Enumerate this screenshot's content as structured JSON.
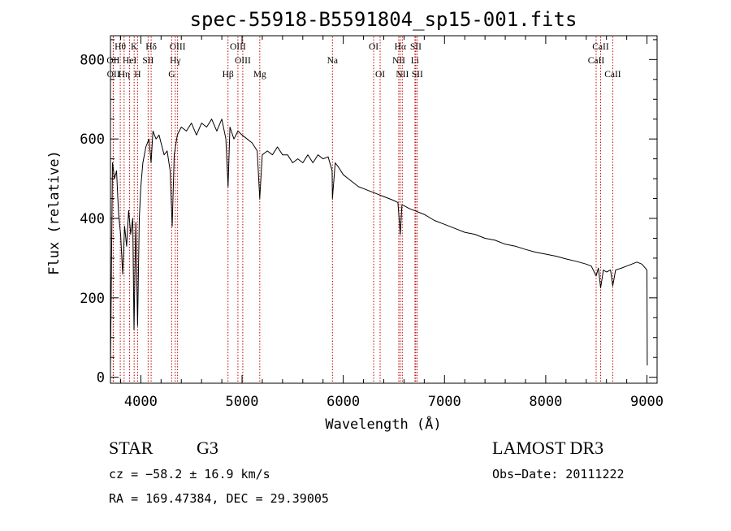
{
  "chart_data": {
    "type": "line",
    "title": "spec-55918-B5591804_sp15-001.fits",
    "xlabel": "Wavelength (Å)",
    "ylabel": "Flux (relative)",
    "xlim": [
      3700,
      9100
    ],
    "ylim": [
      -15,
      860
    ],
    "xticks": [
      4000,
      5000,
      6000,
      7000,
      8000,
      9000
    ],
    "yticks": [
      0,
      200,
      400,
      600,
      800
    ],
    "series": [
      {
        "name": "spectrum",
        "color": "#000000",
        "points": [
          [
            3700,
            20
          ],
          [
            3720,
            540
          ],
          [
            3740,
            500
          ],
          [
            3760,
            520
          ],
          [
            3780,
            410
          ],
          [
            3800,
            360
          ],
          [
            3820,
            260
          ],
          [
            3840,
            380
          ],
          [
            3860,
            330
          ],
          [
            3880,
            420
          ],
          [
            3900,
            360
          ],
          [
            3920,
            400
          ],
          [
            3933,
            120
          ],
          [
            3950,
            390
          ],
          [
            3968,
            130
          ],
          [
            3985,
            400
          ],
          [
            4000,
            480
          ],
          [
            4020,
            540
          ],
          [
            4050,
            580
          ],
          [
            4080,
            600
          ],
          [
            4101,
            540
          ],
          [
            4120,
            620
          ],
          [
            4150,
            600
          ],
          [
            4180,
            610
          ],
          [
            4200,
            590
          ],
          [
            4230,
            560
          ],
          [
            4260,
            570
          ],
          [
            4290,
            520
          ],
          [
            4310,
            380
          ],
          [
            4330,
            560
          ],
          [
            4360,
            610
          ],
          [
            4400,
            630
          ],
          [
            4450,
            620
          ],
          [
            4500,
            640
          ],
          [
            4550,
            610
          ],
          [
            4600,
            640
          ],
          [
            4650,
            630
          ],
          [
            4700,
            650
          ],
          [
            4750,
            620
          ],
          [
            4800,
            650
          ],
          [
            4840,
            600
          ],
          [
            4862,
            480
          ],
          [
            4880,
            630
          ],
          [
            4920,
            600
          ],
          [
            4960,
            620
          ],
          [
            5000,
            610
          ],
          [
            5050,
            600
          ],
          [
            5100,
            590
          ],
          [
            5150,
            570
          ],
          [
            5175,
            450
          ],
          [
            5200,
            560
          ],
          [
            5250,
            570
          ],
          [
            5300,
            560
          ],
          [
            5350,
            580
          ],
          [
            5400,
            560
          ],
          [
            5450,
            560
          ],
          [
            5500,
            540
          ],
          [
            5550,
            550
          ],
          [
            5600,
            540
          ],
          [
            5650,
            560
          ],
          [
            5700,
            540
          ],
          [
            5750,
            560
          ],
          [
            5800,
            550
          ],
          [
            5850,
            555
          ],
          [
            5890,
            520
          ],
          [
            5893,
            450
          ],
          [
            5920,
            540
          ],
          [
            5950,
            530
          ],
          [
            6000,
            510
          ],
          [
            6050,
            500
          ],
          [
            6100,
            490
          ],
          [
            6150,
            480
          ],
          [
            6200,
            475
          ],
          [
            6250,
            470
          ],
          [
            6300,
            465
          ],
          [
            6350,
            460
          ],
          [
            6400,
            455
          ],
          [
            6450,
            450
          ],
          [
            6500,
            445
          ],
          [
            6540,
            440
          ],
          [
            6563,
            360
          ],
          [
            6580,
            435
          ],
          [
            6650,
            425
          ],
          [
            6700,
            420
          ],
          [
            6800,
            410
          ],
          [
            6900,
            395
          ],
          [
            7000,
            385
          ],
          [
            7100,
            375
          ],
          [
            7200,
            365
          ],
          [
            7300,
            360
          ],
          [
            7400,
            350
          ],
          [
            7500,
            345
          ],
          [
            7600,
            335
          ],
          [
            7700,
            330
          ],
          [
            7800,
            322
          ],
          [
            7900,
            315
          ],
          [
            8000,
            310
          ],
          [
            8100,
            305
          ],
          [
            8200,
            298
          ],
          [
            8300,
            292
          ],
          [
            8400,
            285
          ],
          [
            8450,
            280
          ],
          [
            8498,
            255
          ],
          [
            8520,
            275
          ],
          [
            8542,
            225
          ],
          [
            8570,
            270
          ],
          [
            8600,
            265
          ],
          [
            8640,
            270
          ],
          [
            8662,
            230
          ],
          [
            8690,
            270
          ],
          [
            8750,
            275
          ],
          [
            8800,
            280
          ],
          [
            8850,
            285
          ],
          [
            8900,
            290
          ],
          [
            8950,
            285
          ],
          [
            9000,
            270
          ],
          [
            9003,
            30
          ]
        ]
      }
    ],
    "lines": [
      {
        "label": "Hθ",
        "x": 3797,
        "row": 0
      },
      {
        "label": "OII",
        "x": 3727,
        "row": 1
      },
      {
        "label": "OII",
        "x": 3729,
        "row": 2
      },
      {
        "label": "K",
        "x": 3934,
        "row": 0
      },
      {
        "label": "HeI",
        "x": 3889,
        "row": 1
      },
      {
        "label": "Hη",
        "x": 3835,
        "row": 2
      },
      {
        "label": "SII",
        "x": 4072,
        "row": 1
      },
      {
        "label": "H",
        "x": 3968,
        "row": 2
      },
      {
        "label": "Hδ",
        "x": 4102,
        "row": 0
      },
      {
        "label": "OIII",
        "x": 4363,
        "row": 0
      },
      {
        "label": "Hγ",
        "x": 4340,
        "row": 1
      },
      {
        "label": "G",
        "x": 4305,
        "row": 2
      },
      {
        "label": "OIII",
        "x": 4959,
        "row": 0
      },
      {
        "label": "OIII",
        "x": 5007,
        "row": 1
      },
      {
        "label": "Hβ",
        "x": 4861,
        "row": 2
      },
      {
        "label": "Mg",
        "x": 5175,
        "row": 2
      },
      {
        "label": "Na",
        "x": 5893,
        "row": 1
      },
      {
        "label": "OI",
        "x": 6300,
        "row": 0
      },
      {
        "label": "OI",
        "x": 6364,
        "row": 2
      },
      {
        "label": "Hα",
        "x": 6563,
        "row": 0
      },
      {
        "label": "SII",
        "x": 6716,
        "row": 0
      },
      {
        "label": "NII",
        "x": 6548,
        "row": 1
      },
      {
        "label": "Li",
        "x": 6708,
        "row": 1
      },
      {
        "label": "NII",
        "x": 6583,
        "row": 2
      },
      {
        "label": "SII",
        "x": 6731,
        "row": 2
      },
      {
        "label": "CaII",
        "x": 8542,
        "row": 0
      },
      {
        "label": "CaII",
        "x": 8498,
        "row": 1
      },
      {
        "label": "CaII",
        "x": 8662,
        "row": 2
      }
    ]
  },
  "info": {
    "object_class": "STAR",
    "subclass": "G3",
    "survey": "LAMOST DR3",
    "cz": "cz = −58.2 ± 16.9 km/s",
    "obs_date": "Obs−Date: 20111222",
    "coords": "RA = 169.47384, DEC =  29.39005"
  },
  "colors": {
    "line_marker": "#c00000",
    "spectrum": "#000000",
    "axes": "#000000"
  }
}
